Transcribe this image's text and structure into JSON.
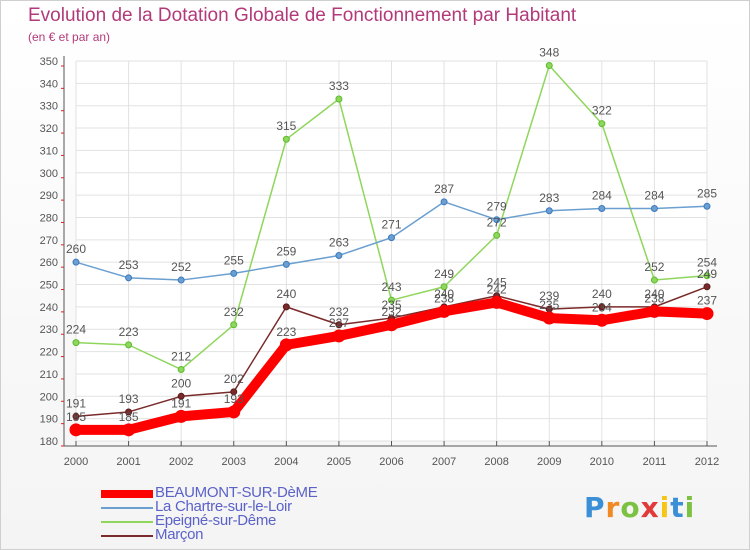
{
  "title": "Evolution de la Dotation Globale de Fonctionnement par Habitant",
  "subtitle": "(en € et par an)",
  "logo": {
    "letters": [
      "P",
      "r",
      "o",
      "x",
      "i",
      "t",
      "i"
    ],
    "colors": [
      "#3a8fd6",
      "#f08a24",
      "#7cc242",
      "#e23a3a",
      "#f5c518",
      "#3a8fd6",
      "#7cc242"
    ]
  },
  "chart_data": {
    "type": "line",
    "title": "Evolution de la Dotation Globale de Fonctionnement par Habitant",
    "subtitle": "(en € et par an)",
    "xlabel": "",
    "ylabel": "",
    "x": [
      "2000",
      "2001",
      "2002",
      "2003",
      "2004",
      "2005",
      "2006",
      "2007",
      "2008",
      "2009",
      "2010",
      "2011",
      "2012"
    ],
    "ylim": [
      180,
      350
    ],
    "yticks": [
      180,
      190,
      200,
      210,
      220,
      230,
      240,
      250,
      260,
      270,
      280,
      290,
      300,
      310,
      320,
      330,
      340,
      350
    ],
    "grid": true,
    "legend_position": "bottom-left",
    "series": [
      {
        "name": "BEAUMONT-SUR-DèME",
        "color": "#ff0000",
        "values": [
          185,
          185,
          191,
          193,
          223,
          227,
          232,
          238,
          242,
          235,
          234,
          238,
          237
        ]
      },
      {
        "name": "La Chartre-sur-le-Loir",
        "color": "#6a9fd0",
        "values": [
          260,
          253,
          252,
          255,
          259,
          263,
          271,
          287,
          279,
          283,
          284,
          284,
          285
        ]
      },
      {
        "name": "Epeigné-sur-Dême",
        "color": "#8fd65c",
        "values": [
          224,
          223,
          212,
          232,
          315,
          333,
          243,
          249,
          272,
          348,
          322,
          252,
          254
        ]
      },
      {
        "name": "Marçon",
        "color": "#7a2a2a",
        "values": [
          191,
          193,
          200,
          202,
          240,
          232,
          235,
          240,
          245,
          239,
          240,
          240,
          249
        ]
      }
    ]
  }
}
